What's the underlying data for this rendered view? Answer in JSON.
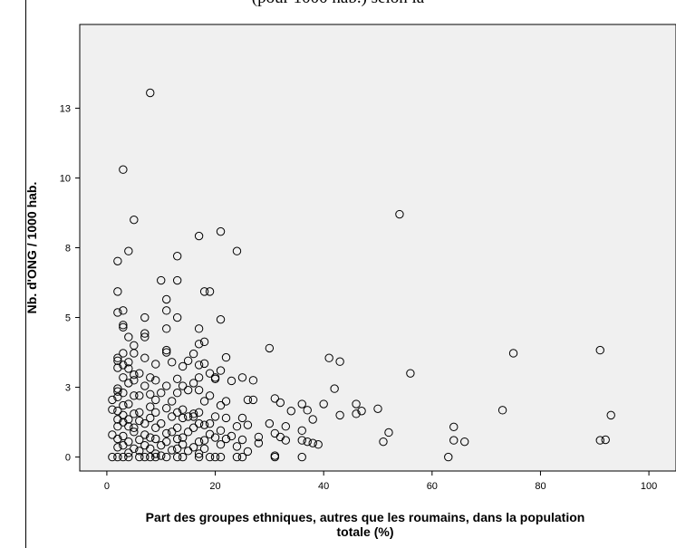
{
  "caption_fragment": "(pour 1000 hab.) selon la",
  "chart_data": {
    "type": "scatter",
    "xlabel_lines": [
      "Part des groupes ethniques, autres que les roumains, dans la population",
      "totale (%)"
    ],
    "ylabel": "Nb. d'ONG / 1000 hab.",
    "xlim": [
      -5,
      105
    ],
    "ylim": [
      -0.5,
      15.5
    ],
    "grid": false,
    "marker": "circle-hollow",
    "plot_bg": "#f0f0f0",
    "x_ticks": [
      {
        "v": 0,
        "label": "0"
      },
      {
        "v": 20,
        "label": "20"
      },
      {
        "v": 40,
        "label": "40"
      },
      {
        "v": 60,
        "label": "60"
      },
      {
        "v": 80,
        "label": "80"
      },
      {
        "v": 100,
        "label": "100"
      }
    ],
    "y_ticks": [
      {
        "v": 0,
        "label": "0"
      },
      {
        "v": 2.5,
        "label": "3"
      },
      {
        "v": 5,
        "label": "5"
      },
      {
        "v": 7.5,
        "label": "8"
      },
      {
        "v": 10,
        "label": "10"
      },
      {
        "v": 12.5,
        "label": "13"
      }
    ],
    "points": [
      [
        8,
        13.05
      ],
      [
        3,
        10.3
      ],
      [
        54,
        8.7
      ],
      [
        5,
        8.5
      ],
      [
        21,
        8.08
      ],
      [
        17,
        7.92
      ],
      [
        4,
        7.38
      ],
      [
        24,
        7.38
      ],
      [
        13,
        7.2
      ],
      [
        2,
        7.02
      ],
      [
        10,
        6.33
      ],
      [
        13,
        6.33
      ],
      [
        2,
        5.93
      ],
      [
        18,
        5.93
      ],
      [
        19,
        5.93
      ],
      [
        11,
        5.65
      ],
      [
        2,
        5.18
      ],
      [
        3,
        5.25
      ],
      [
        11,
        5.25
      ],
      [
        7,
        5.0
      ],
      [
        13,
        5.0
      ],
      [
        21,
        4.93
      ],
      [
        3,
        4.73
      ],
      [
        3,
        4.65
      ],
      [
        11,
        4.6
      ],
      [
        7,
        4.43
      ],
      [
        17,
        4.6
      ],
      [
        4,
        4.3
      ],
      [
        7,
        4.3
      ],
      [
        18,
        4.13
      ],
      [
        17,
        4.05
      ],
      [
        5,
        4.0
      ],
      [
        30,
        3.9
      ],
      [
        11,
        3.83
      ],
      [
        11,
        3.75
      ],
      [
        91,
        3.83
      ],
      [
        75,
        3.72
      ],
      [
        3,
        3.72
      ],
      [
        5,
        3.72
      ],
      [
        2,
        3.55
      ],
      [
        2,
        3.45
      ],
      [
        41,
        3.55
      ],
      [
        22,
        3.57
      ],
      [
        43,
        3.42
      ],
      [
        7,
        3.55
      ],
      [
        16,
        3.7
      ],
      [
        12,
        3.4
      ],
      [
        15,
        3.45
      ],
      [
        18,
        3.35
      ],
      [
        17,
        3.3
      ],
      [
        3,
        3.3
      ],
      [
        4,
        3.4
      ],
      [
        9,
        3.33
      ],
      [
        14,
        3.25
      ],
      [
        2,
        3.2
      ],
      [
        4,
        3.17
      ],
      [
        56,
        3.0
      ],
      [
        19,
        3.0
      ],
      [
        5,
        2.95
      ],
      [
        6,
        3.0
      ],
      [
        21,
        3.1
      ],
      [
        3,
        2.85
      ],
      [
        8,
        2.85
      ],
      [
        13,
        2.8
      ],
      [
        17,
        2.85
      ],
      [
        25,
        2.85
      ],
      [
        20,
        2.85
      ],
      [
        20,
        2.8
      ],
      [
        5,
        2.75
      ],
      [
        9,
        2.75
      ],
      [
        16,
        2.65
      ],
      [
        27,
        2.75
      ],
      [
        23,
        2.73
      ],
      [
        4,
        2.65
      ],
      [
        14,
        2.55
      ],
      [
        11,
        2.55
      ],
      [
        7,
        2.55
      ],
      [
        42,
        2.45
      ],
      [
        2,
        2.45
      ],
      [
        15,
        2.4
      ],
      [
        17,
        2.4
      ],
      [
        2,
        2.35
      ],
      [
        3,
        2.3
      ],
      [
        5,
        2.2
      ],
      [
        6,
        2.2
      ],
      [
        8,
        2.25
      ],
      [
        10,
        2.3
      ],
      [
        13,
        2.3
      ],
      [
        19,
        2.2
      ],
      [
        2,
        2.15
      ],
      [
        26,
        2.05
      ],
      [
        27,
        2.05
      ],
      [
        31,
        2.1
      ],
      [
        18,
        2.0
      ],
      [
        9,
        2.05
      ],
      [
        22,
        2.0
      ],
      [
        12,
        2.0
      ],
      [
        1,
        2.05
      ],
      [
        32,
        1.95
      ],
      [
        40,
        1.9
      ],
      [
        46,
        1.9
      ],
      [
        36,
        1.9
      ],
      [
        21,
        1.85
      ],
      [
        3,
        1.85
      ],
      [
        4,
        1.9
      ],
      [
        8,
        1.8
      ],
      [
        11,
        1.75
      ],
      [
        14,
        1.7
      ],
      [
        50,
        1.73
      ],
      [
        73,
        1.68
      ],
      [
        1,
        1.7
      ],
      [
        37,
        1.68
      ],
      [
        47,
        1.65
      ],
      [
        34,
        1.65
      ],
      [
        2,
        1.65
      ],
      [
        6,
        1.6
      ],
      [
        9,
        1.6
      ],
      [
        13,
        1.6
      ],
      [
        16,
        1.55
      ],
      [
        17,
        1.6
      ],
      [
        5,
        1.55
      ],
      [
        43,
        1.5
      ],
      [
        46,
        1.55
      ],
      [
        93,
        1.5
      ],
      [
        3,
        1.5
      ],
      [
        25,
        1.4
      ],
      [
        38,
        1.35
      ],
      [
        12,
        1.45
      ],
      [
        20,
        1.45
      ],
      [
        2,
        1.35
      ],
      [
        4,
        1.35
      ],
      [
        6,
        1.3
      ],
      [
        8,
        1.4
      ],
      [
        14,
        1.4
      ],
      [
        15,
        1.45
      ],
      [
        16,
        1.45
      ],
      [
        22,
        1.4
      ],
      [
        3,
        1.25
      ],
      [
        7,
        1.2
      ],
      [
        10,
        1.2
      ],
      [
        17,
        1.2
      ],
      [
        19,
        1.2
      ],
      [
        30,
        1.2
      ],
      [
        33,
        1.1
      ],
      [
        4,
        1.1
      ],
      [
        18,
        1.15
      ],
      [
        2,
        1.1
      ],
      [
        5,
        1.05
      ],
      [
        9,
        1.05
      ],
      [
        13,
        1.05
      ],
      [
        16,
        1.05
      ],
      [
        26,
        1.15
      ],
      [
        64,
        1.08
      ],
      [
        24,
        1.1
      ],
      [
        52,
        0.88
      ],
      [
        36,
        0.95
      ],
      [
        5,
        0.9
      ],
      [
        12,
        0.9
      ],
      [
        15,
        0.9
      ],
      [
        21,
        0.95
      ],
      [
        1,
        0.8
      ],
      [
        7,
        0.8
      ],
      [
        11,
        0.85
      ],
      [
        19,
        0.82
      ],
      [
        31,
        0.85
      ],
      [
        23,
        0.75
      ],
      [
        32,
        0.72
      ],
      [
        3,
        0.75
      ],
      [
        8,
        0.7
      ],
      [
        14,
        0.7
      ],
      [
        20,
        0.7
      ],
      [
        28,
        0.72
      ],
      [
        2,
        0.65
      ],
      [
        6,
        0.62
      ],
      [
        9,
        0.65
      ],
      [
        13,
        0.65
      ],
      [
        22,
        0.65
      ],
      [
        25,
        0.62
      ],
      [
        18,
        0.6
      ],
      [
        4,
        0.55
      ],
      [
        11,
        0.55
      ],
      [
        17,
        0.55
      ],
      [
        33,
        0.6
      ],
      [
        36,
        0.6
      ],
      [
        37,
        0.55
      ],
      [
        51,
        0.55
      ],
      [
        64,
        0.6
      ],
      [
        66,
        0.55
      ],
      [
        91,
        0.6
      ],
      [
        92,
        0.62
      ],
      [
        38,
        0.5
      ],
      [
        39,
        0.45
      ],
      [
        14,
        0.45
      ],
      [
        21,
        0.45
      ],
      [
        3,
        0.42
      ],
      [
        7,
        0.42
      ],
      [
        10,
        0.42
      ],
      [
        28,
        0.5
      ],
      [
        2,
        0.35
      ],
      [
        16,
        0.35
      ],
      [
        24,
        0.38
      ],
      [
        5,
        0.3
      ],
      [
        8,
        0.3
      ],
      [
        13,
        0.3
      ],
      [
        18,
        0.3
      ],
      [
        6,
        0.22
      ],
      [
        12,
        0.25
      ],
      [
        15,
        0.22
      ],
      [
        26,
        0.2
      ],
      [
        4,
        0.15
      ],
      [
        9,
        0.12
      ],
      [
        17,
        0.12
      ],
      [
        1,
        0.0
      ],
      [
        2,
        0.0
      ],
      [
        3,
        0.0
      ],
      [
        4,
        0.0
      ],
      [
        6,
        0.0
      ],
      [
        7,
        0.0
      ],
      [
        8,
        0.0
      ],
      [
        9,
        0.0
      ],
      [
        11,
        0.0
      ],
      [
        13,
        0.0
      ],
      [
        14,
        0.0
      ],
      [
        17,
        0.0
      ],
      [
        19,
        0.0
      ],
      [
        20,
        0.0
      ],
      [
        21,
        0.0
      ],
      [
        24,
        0.0
      ],
      [
        25,
        0.0
      ],
      [
        31,
        0.0
      ],
      [
        36,
        0.0
      ],
      [
        63,
        0.0
      ],
      [
        31,
        0.05
      ],
      [
        10,
        0.05
      ]
    ]
  }
}
